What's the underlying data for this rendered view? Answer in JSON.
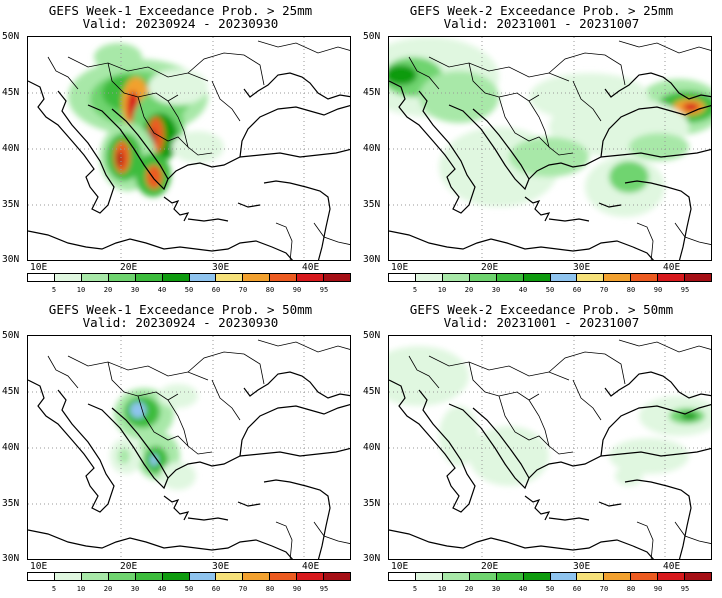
{
  "panels": [
    {
      "title1": "GEFS Week-1 Exceedance Prob. > 25mm",
      "title2": "Valid: 20230924 - 20230930"
    },
    {
      "title1": "GEFS Week-2 Exceedance Prob. > 25mm",
      "title2": "Valid: 20231001 - 20231007"
    },
    {
      "title1": "GEFS Week-1 Exceedance Prob. > 50mm",
      "title2": "Valid: 20230924 - 20230930"
    },
    {
      "title1": "GEFS Week-2 Exceedance Prob. > 50mm",
      "title2": "Valid: 20231001 - 20231007"
    }
  ],
  "axes": {
    "lat_labels": [
      "50N",
      "45N",
      "40N",
      "35N",
      "30N"
    ],
    "lon_labels": [
      "10E",
      "20E",
      "30E",
      "40E"
    ]
  },
  "colorbar": {
    "labels": [
      "5",
      "10",
      "20",
      "30",
      "40",
      "50",
      "60",
      "70",
      "80",
      "90",
      "95"
    ],
    "colors": [
      "#ffffff",
      "#e0f7e0",
      "#a8e8a8",
      "#6fd46f",
      "#3cbc3c",
      "#0f9b0f",
      "#8fc4ef",
      "#f6e17a",
      "#f2a12f",
      "#ec5b20",
      "#d7191c",
      "#a50f15"
    ]
  }
}
